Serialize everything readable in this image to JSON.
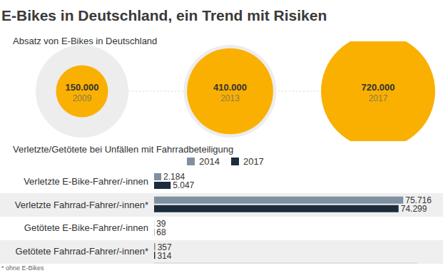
{
  "title": "E-Bikes in Deutschland, ein Trend mit Risiken",
  "footnote": "* ohne E-Bikes",
  "chart_data": [
    {
      "type": "bubble",
      "title": "Absatz von E-Bikes in Deutschland",
      "categories": [
        "2009",
        "2013",
        "2017"
      ],
      "values": [
        150000,
        410000,
        720000
      ],
      "value_labels": [
        "150.000",
        "410.000",
        "720.000"
      ],
      "color": "#f9b000",
      "data_labels": true,
      "tick_labels": false
    },
    {
      "type": "bar",
      "orientation": "horizontal",
      "title": "Verletzte/Getötete bei Unfällen mit Fahrradbeteiligung",
      "categories": [
        "Verletzte E-Bike-Fahrer/-innen",
        "Verletzte Fahrrad-Fahrer/-innen*",
        "Getötete E-Bike-Fahrer/-innen",
        "Getötete Fahrrad-Fahrer/-innen*"
      ],
      "series": [
        {
          "name": "2014",
          "color": "#7f91a1",
          "values": [
            2184,
            75716,
            39,
            357
          ],
          "value_labels": [
            "2.184",
            "75.716",
            "39",
            "357"
          ]
        },
        {
          "name": "2017",
          "color": "#1b2c3d",
          "values": [
            5047,
            74299,
            68,
            314
          ],
          "value_labels": [
            "5.047",
            "74.299",
            "68",
            "314"
          ]
        }
      ],
      "xlim": [
        0,
        80000
      ],
      "xticks": [
        0,
        80000
      ],
      "data_labels": true,
      "tick_labels": false,
      "grid": false,
      "legend": "top"
    }
  ]
}
